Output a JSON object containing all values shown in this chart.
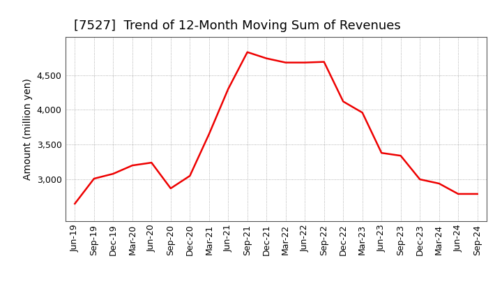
{
  "title": "[7527]  Trend of 12-Month Moving Sum of Revenues",
  "ylabel": "Amount (million yen)",
  "x_labels": [
    "Jun-19",
    "Sep-19",
    "Dec-19",
    "Mar-20",
    "Jun-20",
    "Sep-20",
    "Dec-20",
    "Mar-21",
    "Jun-21",
    "Sep-21",
    "Dec-21",
    "Mar-22",
    "Jun-22",
    "Sep-22",
    "Dec-22",
    "Mar-23",
    "Jun-23",
    "Sep-23",
    "Dec-23",
    "Mar-24",
    "Jun-24",
    "Sep-24"
  ],
  "values": [
    2650,
    3010,
    3080,
    3200,
    3240,
    2870,
    3050,
    3650,
    4300,
    4830,
    4740,
    4680,
    4680,
    4690,
    4120,
    3960,
    3380,
    3340,
    3000,
    2940,
    2790,
    2790
  ],
  "line_color": "#ee0000",
  "line_width": 1.8,
  "ylim_min": 2400,
  "ylim_max": 5050,
  "yticks": [
    3000,
    3500,
    4000,
    4500
  ],
  "background_color": "#ffffff",
  "plot_background": "#ffffff",
  "grid_color": "#999999",
  "title_fontsize": 13,
  "axis_label_fontsize": 10,
  "tick_fontsize": 9
}
